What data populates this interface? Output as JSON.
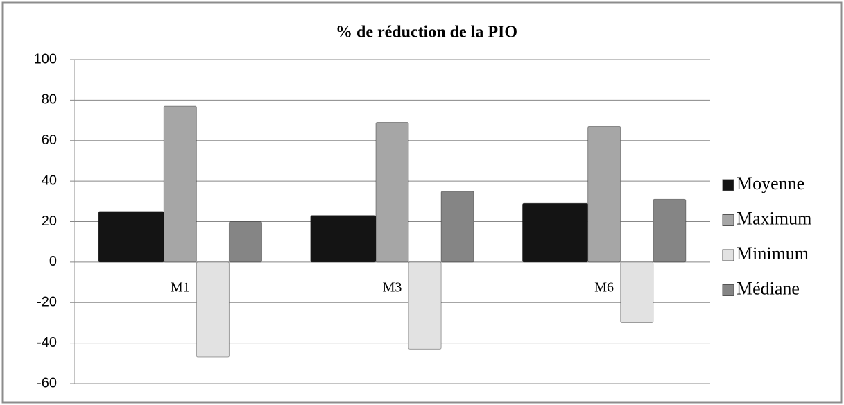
{
  "chart_data": {
    "type": "bar",
    "title": "% de réduction de la PIO",
    "categories": [
      "M1",
      "M3",
      "M6"
    ],
    "series": [
      {
        "name": "Moyenne",
        "color": "#141414",
        "values": [
          25,
          23,
          29
        ]
      },
      {
        "name": "Maximum",
        "color": "#a6a6a6",
        "values": [
          77,
          69,
          67
        ]
      },
      {
        "name": "Minimum",
        "color": "#e2e2e2",
        "values": [
          -47,
          -43,
          -30
        ]
      },
      {
        "name": "Médiane",
        "color": "#858585",
        "values": [
          20,
          35,
          31
        ]
      }
    ],
    "ylim": [
      -60,
      100
    ],
    "yticks": [
      -60,
      -40,
      -20,
      0,
      20,
      40,
      60,
      80,
      100
    ],
    "grid": true,
    "legend": "right"
  }
}
